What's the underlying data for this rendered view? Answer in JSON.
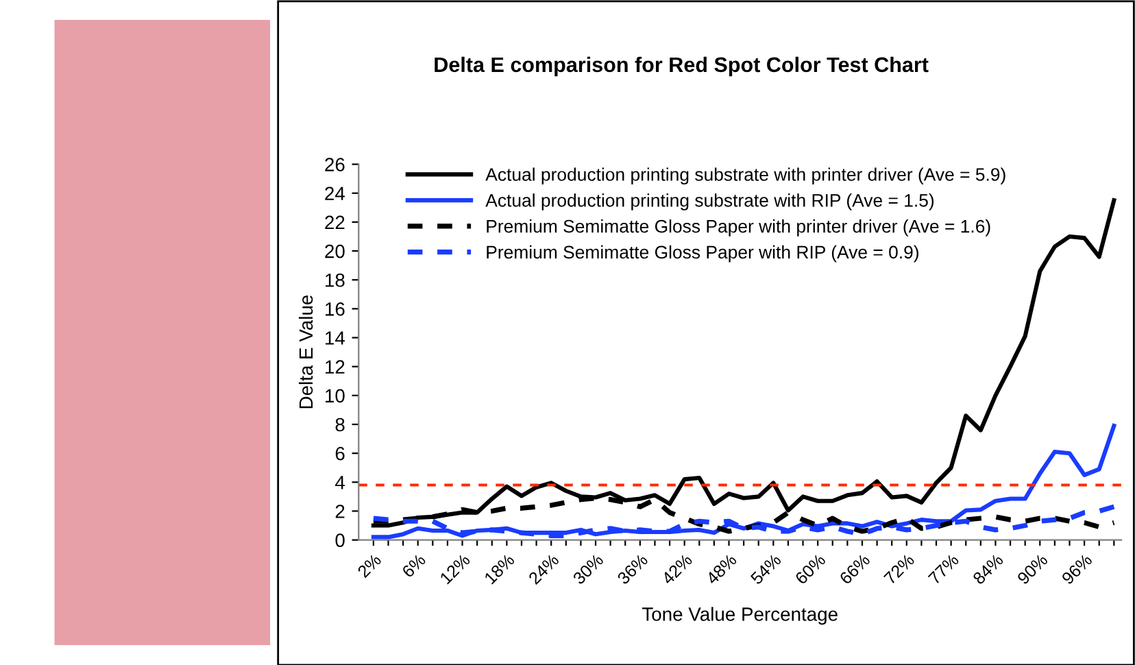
{
  "chart_data": {
    "type": "line",
    "title": "Delta E comparison for Red Spot Color Test Chart",
    "xlabel": "Tone Value Percentage",
    "ylabel": "Delta E Value",
    "categories": [
      "2%",
      null,
      null,
      "6%",
      null,
      null,
      "12%",
      null,
      null,
      "18%",
      null,
      null,
      "24%",
      null,
      null,
      "30%",
      null,
      null,
      "36%",
      null,
      null,
      "42%",
      null,
      null,
      "48%",
      null,
      null,
      "54%",
      null,
      null,
      "60%",
      null,
      null,
      "66%",
      null,
      null,
      "72%",
      null,
      null,
      "77%",
      null,
      null,
      "84%",
      null,
      null,
      "90%",
      null,
      null,
      "96%",
      null,
      null
    ],
    "series": [
      {
        "name": "Actual production printing substrate with printer driver (Ave = 5.9)",
        "color": "#000000",
        "line_style": "solid",
        "values": [
          1.0,
          1.0,
          1.2,
          1.55,
          1.6,
          1.75,
          1.9,
          1.9,
          2.85,
          3.7,
          3.05,
          3.65,
          3.95,
          3.4,
          3.0,
          2.95,
          3.25,
          2.75,
          2.85,
          3.1,
          2.5,
          4.2,
          4.3,
          2.5,
          3.2,
          2.9,
          3.0,
          3.95,
          2.05,
          3.0,
          2.7,
          2.7,
          3.1,
          3.25,
          4.05,
          2.95,
          3.05,
          2.6,
          3.95,
          5.0,
          8.6,
          7.6,
          10.0,
          12.0,
          14.1,
          18.6,
          20.3,
          21.0,
          20.9,
          19.6,
          23.5
        ]
      },
      {
        "name": "Actual production printing substrate with RIP (Ave = 1.5)",
        "color": "#1a3cff",
        "line_style": "solid",
        "values": [
          0.2,
          0.2,
          0.4,
          0.8,
          0.65,
          0.65,
          0.3,
          0.65,
          0.7,
          0.8,
          0.5,
          0.5,
          0.5,
          0.5,
          0.7,
          0.4,
          0.55,
          0.65,
          0.55,
          0.55,
          0.55,
          0.65,
          0.7,
          0.5,
          1.1,
          0.8,
          1.15,
          0.95,
          0.65,
          1.1,
          0.95,
          1.15,
          1.15,
          0.95,
          1.25,
          0.95,
          1.15,
          1.4,
          1.3,
          1.3,
          2.05,
          2.1,
          2.7,
          2.85,
          2.85,
          4.6,
          6.1,
          6.0,
          4.5,
          4.9,
          7.9
        ]
      },
      {
        "name": "Premium Semimatte Gloss Paper with printer driver (Ave = 1.6)",
        "color": "#000000",
        "line_style": "dashed",
        "values": [
          1.3,
          1.3,
          1.4,
          1.5,
          1.6,
          1.8,
          2.1,
          1.9,
          2.0,
          2.2,
          2.2,
          2.3,
          2.4,
          2.6,
          2.8,
          2.9,
          2.8,
          2.6,
          2.3,
          2.8,
          1.9,
          1.5,
          1.1,
          0.9,
          0.6,
          0.8,
          1.0,
          1.2,
          1.9,
          1.4,
          1.0,
          1.5,
          0.9,
          0.6,
          0.8,
          1.2,
          1.5,
          0.8,
          0.9,
          1.2,
          1.4,
          1.5,
          1.6,
          1.4,
          1.3,
          1.5,
          1.5,
          1.3,
          1.2,
          0.9,
          1.2
        ]
      },
      {
        "name": "Premium Semimatte Gloss Paper with RIP (Ave = 0.9)",
        "color": "#1a3cff",
        "line_style": "dashed",
        "values": [
          1.5,
          1.4,
          1.3,
          1.3,
          1.3,
          0.8,
          0.5,
          0.6,
          0.7,
          0.6,
          0.5,
          0.4,
          0.3,
          0.3,
          0.5,
          0.7,
          0.8,
          0.6,
          0.7,
          0.6,
          0.6,
          1.1,
          1.3,
          1.2,
          1.3,
          0.8,
          0.9,
          0.6,
          0.6,
          0.9,
          0.7,
          0.9,
          0.6,
          0.4,
          0.8,
          0.9,
          0.7,
          0.8,
          1.0,
          1.2,
          1.3,
          0.9,
          0.7,
          0.8,
          1.0,
          1.3,
          1.4,
          1.5,
          1.9,
          2.0,
          2.3
        ]
      }
    ],
    "ylim": [
      0,
      26
    ],
    "yticks": [
      0,
      2,
      4,
      6,
      8,
      10,
      12,
      14,
      16,
      18,
      20,
      22,
      24,
      26
    ],
    "ref_lines": [
      {
        "axis": "y",
        "value": 3.8,
        "color": "#ff2a00",
        "line_style": "dashed"
      }
    ],
    "grid": false,
    "legend": "top left",
    "marker": "none"
  }
}
